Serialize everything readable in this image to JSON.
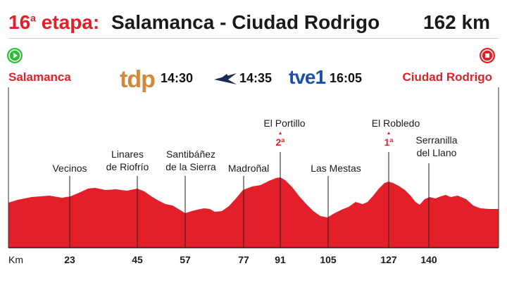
{
  "header": {
    "stage_number": "16",
    "stage_suffix": "a",
    "stage_word": "etapa:",
    "route": "Salamanca - Ciudad Rodrigo",
    "distance": "162 km"
  },
  "start": {
    "label": "Salamanca",
    "icon": "play-icon",
    "color": "#2ebd3b"
  },
  "finish": {
    "label": "Ciudad Rodrigo",
    "icon": "stop-icon",
    "color": "#e3202a"
  },
  "broadcast": [
    {
      "logo": "tdp",
      "time": "14:30",
      "color": "#d0883a"
    },
    {
      "logo": "eurosport-icon",
      "time": "14:35",
      "color": "#1b2a57"
    },
    {
      "logo": "tve1",
      "time": "16:05",
      "color": "#1c4fa8"
    }
  ],
  "places": [
    {
      "name": "Vecinos",
      "km": "23"
    },
    {
      "name": "Linares\nde Riofrío",
      "km": "45"
    },
    {
      "name": "Santibáñez\nde la Sierra",
      "km": "57"
    },
    {
      "name": "Madroñal",
      "km": "77"
    },
    {
      "name": "El Portillo",
      "km": "91",
      "category": "2ª"
    },
    {
      "name": "Las Mestas",
      "km": "105"
    },
    {
      "name": "El Robledo",
      "km": "127",
      "category": "1ª"
    },
    {
      "name": "Serranilla\ndel Llano",
      "km": "140"
    }
  ],
  "axis_title": "Km",
  "profile_color": "#e3202a"
}
